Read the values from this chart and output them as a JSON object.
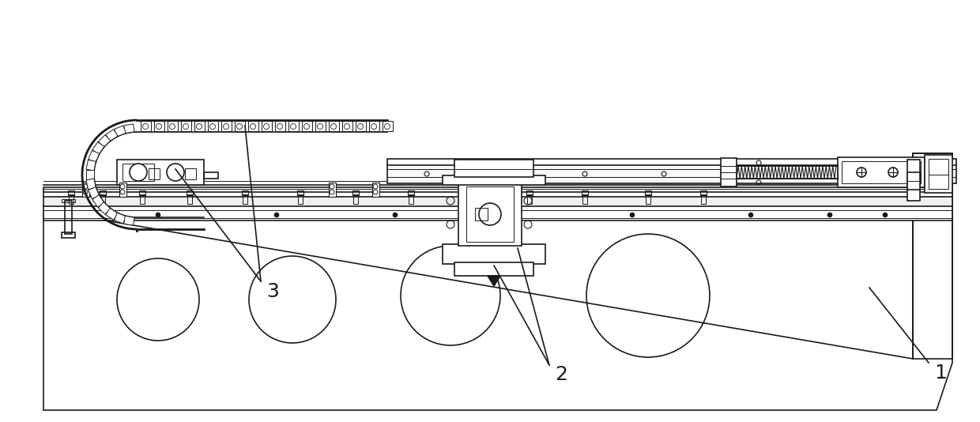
{
  "bg_color": "#ffffff",
  "line_color": "#1a1a1a",
  "lw_main": 1.2,
  "lw_thick": 2.0,
  "lw_thin": 0.7,
  "label_1": "1",
  "label_2": "2",
  "label_3": "3",
  "label_fontsize": 18,
  "figsize": [
    12.4,
    5.34
  ],
  "dpi": 100
}
